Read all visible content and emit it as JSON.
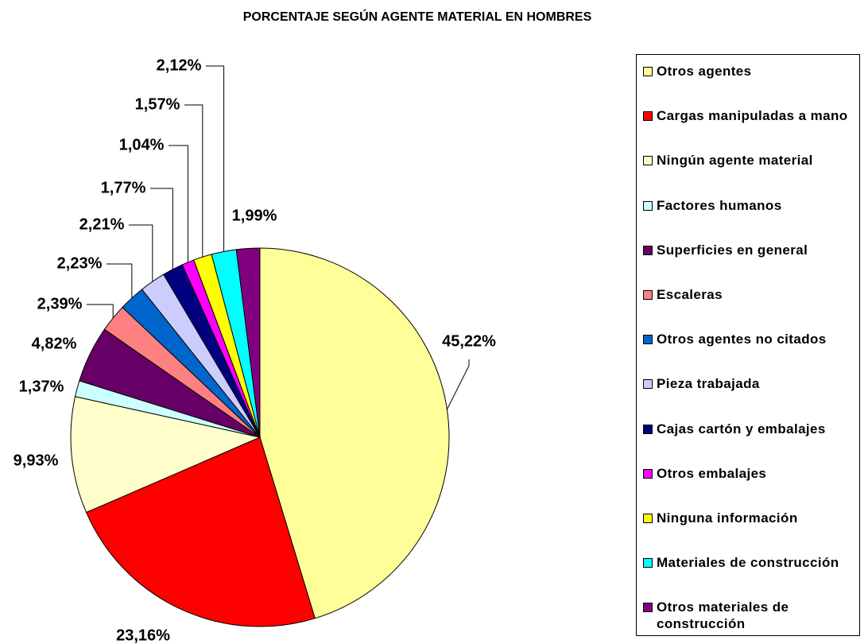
{
  "chart_data": {
    "type": "pie",
    "title": "PORCENTAJE  SEGÚN AGENTE MATERIAL EN HOMBRES",
    "categories": [
      "Otros agentes",
      "Cargas manipuladas a mano",
      "Ningún agente material",
      "Factores humanos",
      "Superficies en general",
      "Escaleras",
      "Otros agentes no citados",
      "Pieza trabajada",
      "Cajas cartón y embalajes",
      "Otros embalajes",
      "Ninguna información",
      "Materiales de construcción",
      "Otros materiales de construcción"
    ],
    "values": [
      45.22,
      23.16,
      9.93,
      1.37,
      4.82,
      2.39,
      2.23,
      2.21,
      1.77,
      1.04,
      1.57,
      2.12,
      1.99
    ],
    "value_labels": [
      "45,22%",
      "23,16%",
      "9,93%",
      "1,37%",
      "4,82%",
      "2,39%",
      "2,23%",
      "2,21%",
      "1,77%",
      "1,04%",
      "1,57%",
      "2,12%",
      "1,99%"
    ],
    "colors": [
      "#FFFF99",
      "#FF0000",
      "#FFFFCC",
      "#CCFFFF",
      "#660066",
      "#FF8080",
      "#0066CC",
      "#CCCCFF",
      "#000080",
      "#FF00FF",
      "#FFFF00",
      "#00FFFF",
      "#800080"
    ]
  }
}
